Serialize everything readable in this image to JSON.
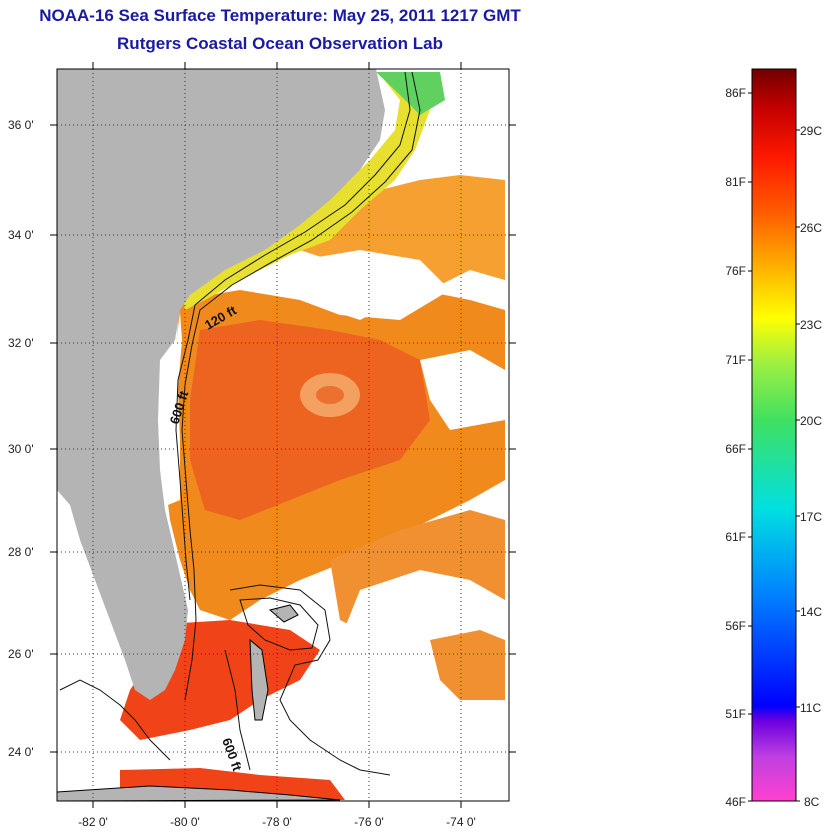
{
  "header": {
    "title": "NOAA-16 Sea Surface Temperature:  May 25, 2011 1217 GMT",
    "subtitle": "Rutgers Coastal Ocean Observation Lab"
  },
  "map": {
    "lat_ticks": [
      "36 0'",
      "34 0'",
      "32 0'",
      "30 0'",
      "28 0'",
      "26 0'",
      "24 0'"
    ],
    "lon_ticks": [
      "-82 0'",
      "-80 0'",
      "-78 0'",
      "-76 0'",
      "-74 0'"
    ],
    "contour_labels": [
      "120 ft",
      "600 ft",
      "600 ft"
    ],
    "land_color": "#b4b4b4",
    "cloud_color": "#ffffff"
  },
  "colorbar": {
    "f_labels": [
      "86F",
      "81F",
      "76F",
      "71F",
      "66F",
      "61F",
      "56F",
      "51F",
      "46F"
    ],
    "c_labels": [
      "29C",
      "26C",
      "23C",
      "20C",
      "17C",
      "14C",
      "11C",
      "8C"
    ]
  }
}
